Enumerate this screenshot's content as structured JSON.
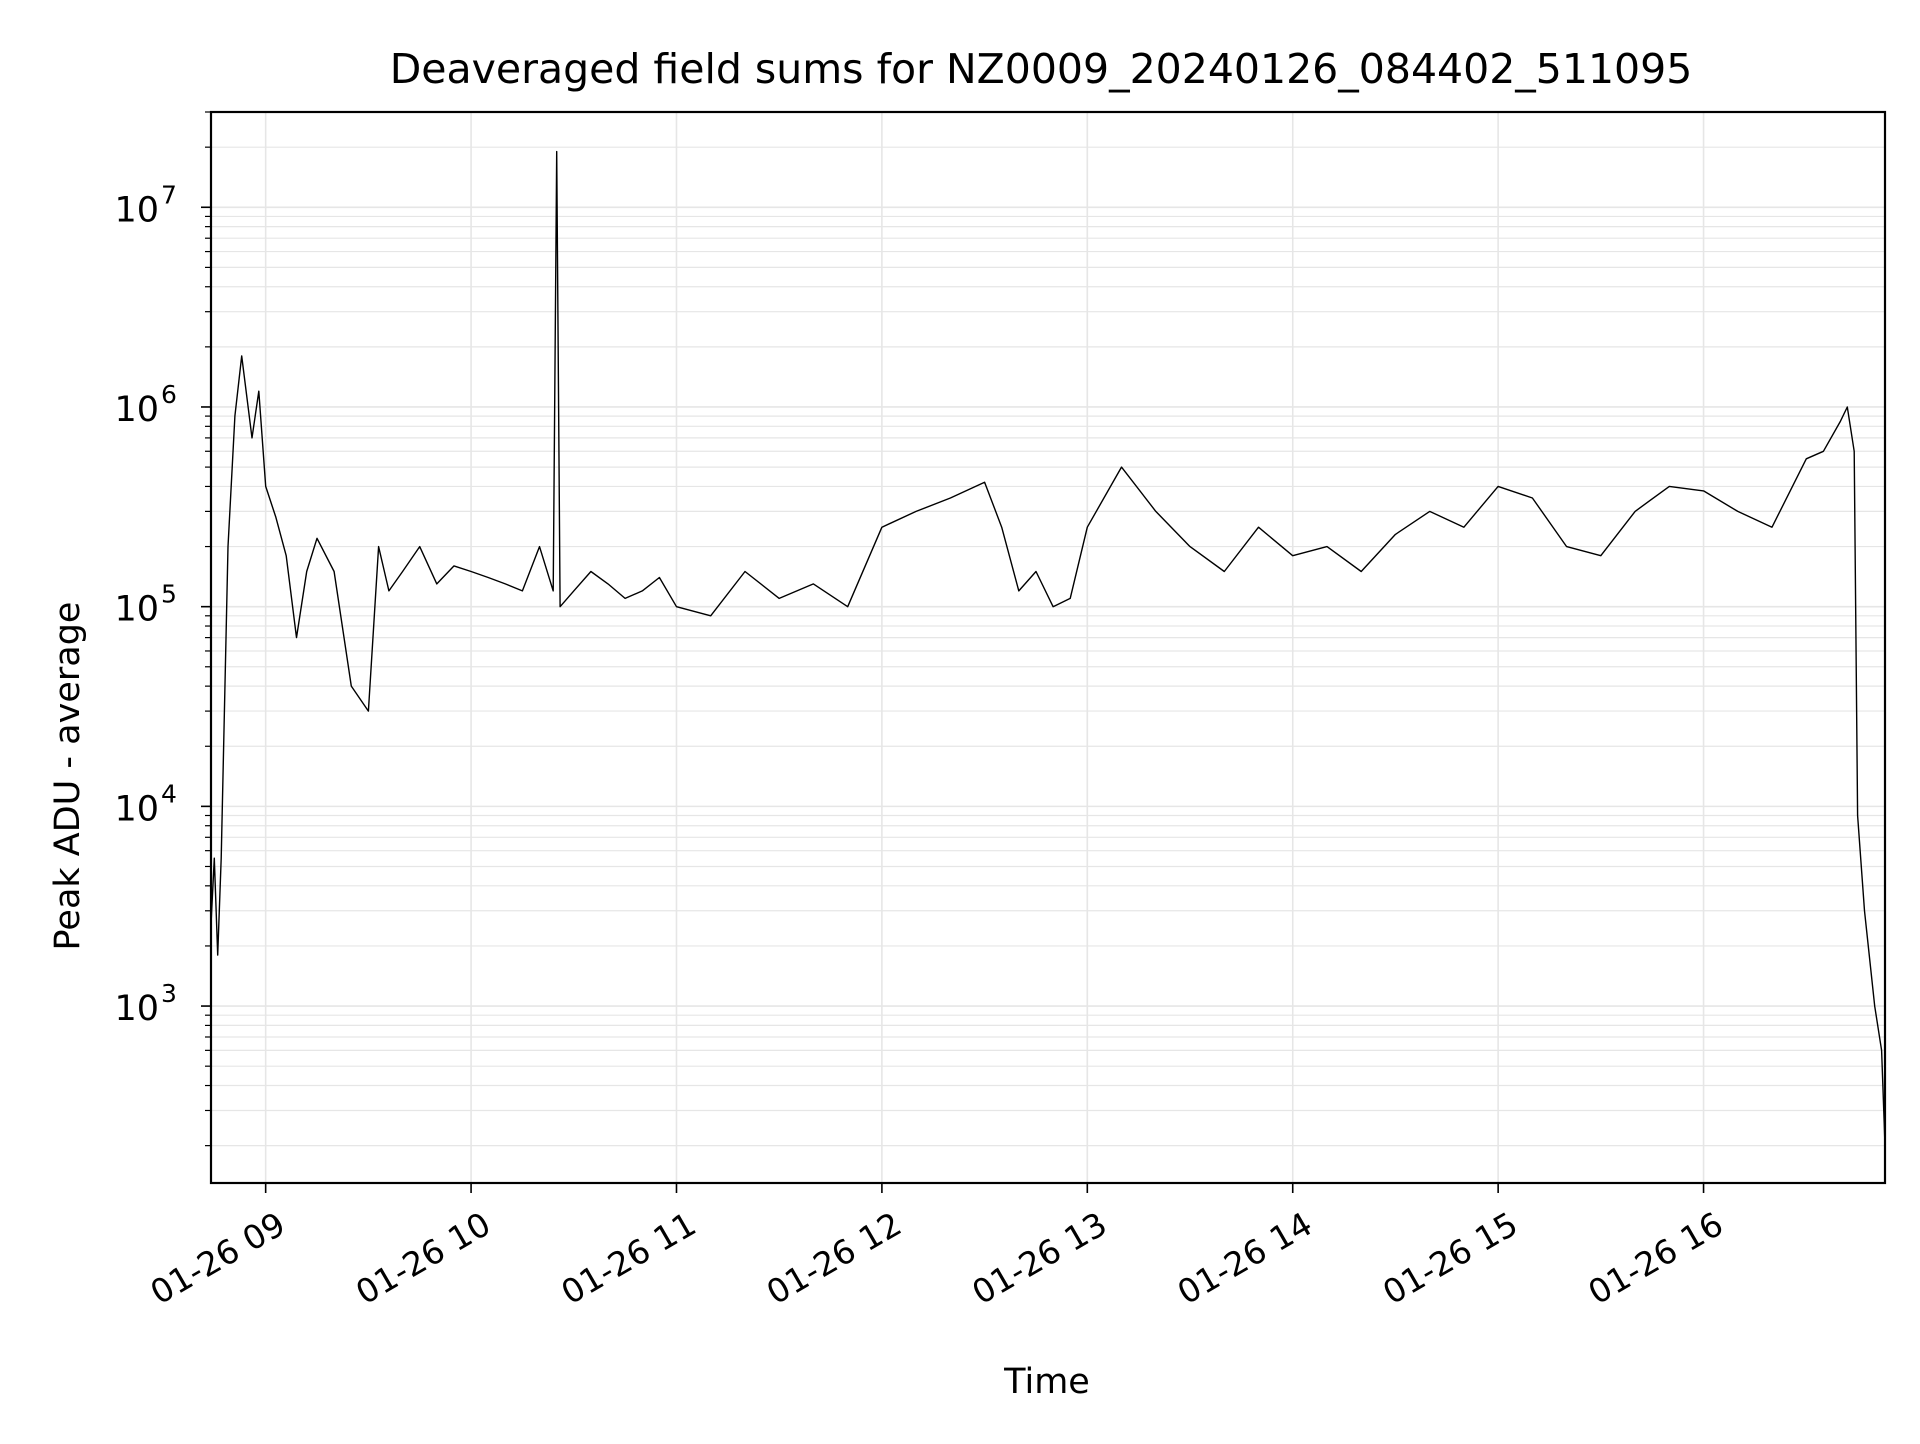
{
  "chart_data": {
    "type": "line",
    "title": "Deaveraged field sums for NZ0009_20240126_084402_511095",
    "xlabel": "Time",
    "ylabel": "Peak ADU - average",
    "yscale": "log",
    "xlim": [
      "2024-01-26 08:44:02",
      "2024-01-26 16:53:00"
    ],
    "ylim": [
      130,
      30000000
    ],
    "grid": true,
    "legend": "none",
    "x_ticks": [
      {
        "value": "2024-01-26 09:00",
        "label": "01-26 09"
      },
      {
        "value": "2024-01-26 10:00",
        "label": "01-26 10"
      },
      {
        "value": "2024-01-26 11:00",
        "label": "01-26 11"
      },
      {
        "value": "2024-01-26 12:00",
        "label": "01-26 12"
      },
      {
        "value": "2024-01-26 13:00",
        "label": "01-26 13"
      },
      {
        "value": "2024-01-26 14:00",
        "label": "01-26 14"
      },
      {
        "value": "2024-01-26 15:00",
        "label": "01-26 15"
      },
      {
        "value": "2024-01-26 16:00",
        "label": "01-26 16"
      }
    ],
    "y_ticks": [
      {
        "value": 1000,
        "base": "10",
        "exp": "3"
      },
      {
        "value": 10000,
        "base": "10",
        "exp": "4"
      },
      {
        "value": 100000,
        "base": "10",
        "exp": "5"
      },
      {
        "value": 1000000,
        "base": "10",
        "exp": "6"
      },
      {
        "value": 10000000,
        "base": "10",
        "exp": "7"
      }
    ],
    "line_color": "#000000",
    "grid_color": "#e6e6e6",
    "series": [
      {
        "x": [
          "2024-01-26 08:44",
          "2024-01-26 08:45",
          "2024-01-26 08:46",
          "2024-01-26 08:47",
          "2024-01-26 08:49",
          "2024-01-26 08:51",
          "2024-01-26 08:53",
          "2024-01-26 08:56",
          "2024-01-26 08:58",
          "2024-01-26 09:00",
          "2024-01-26 09:03",
          "2024-01-26 09:06",
          "2024-01-26 09:09",
          "2024-01-26 09:12",
          "2024-01-26 09:15",
          "2024-01-26 09:20",
          "2024-01-26 09:25",
          "2024-01-26 09:30",
          "2024-01-26 09:33",
          "2024-01-26 09:36",
          "2024-01-26 09:40",
          "2024-01-26 09:45",
          "2024-01-26 09:50",
          "2024-01-26 09:55",
          "2024-01-26 10:00",
          "2024-01-26 10:05",
          "2024-01-26 10:10",
          "2024-01-26 10:15",
          "2024-01-26 10:20",
          "2024-01-26 10:24",
          "2024-01-26 10:25",
          "2024-01-26 10:26",
          "2024-01-26 10:30",
          "2024-01-26 10:35",
          "2024-01-26 10:40",
          "2024-01-26 10:45",
          "2024-01-26 10:50",
          "2024-01-26 10:55",
          "2024-01-26 11:00",
          "2024-01-26 11:10",
          "2024-01-26 11:20",
          "2024-01-26 11:30",
          "2024-01-26 11:40",
          "2024-01-26 11:50",
          "2024-01-26 12:00",
          "2024-01-26 12:10",
          "2024-01-26 12:20",
          "2024-01-26 12:30",
          "2024-01-26 12:35",
          "2024-01-26 12:40",
          "2024-01-26 12:45",
          "2024-01-26 12:50",
          "2024-01-26 12:55",
          "2024-01-26 13:00",
          "2024-01-26 13:10",
          "2024-01-26 13:20",
          "2024-01-26 13:30",
          "2024-01-26 13:40",
          "2024-01-26 13:50",
          "2024-01-26 14:00",
          "2024-01-26 14:10",
          "2024-01-26 14:20",
          "2024-01-26 14:30",
          "2024-01-26 14:40",
          "2024-01-26 14:50",
          "2024-01-26 15:00",
          "2024-01-26 15:10",
          "2024-01-26 15:20",
          "2024-01-26 15:30",
          "2024-01-26 15:40",
          "2024-01-26 15:50",
          "2024-01-26 16:00",
          "2024-01-26 16:10",
          "2024-01-26 16:20",
          "2024-01-26 16:30",
          "2024-01-26 16:35",
          "2024-01-26 16:40",
          "2024-01-26 16:42",
          "2024-01-26 16:44",
          "2024-01-26 16:45",
          "2024-01-26 16:47",
          "2024-01-26 16:50",
          "2024-01-26 16:52",
          "2024-01-26 16:53"
        ],
        "y": [
          2500,
          5500,
          1800,
          5500,
          200000,
          900000,
          1800000,
          700000,
          1200000,
          400000,
          280000,
          180000,
          70000,
          150000,
          220000,
          150000,
          40000,
          30000,
          200000,
          120000,
          150000,
          200000,
          130000,
          160000,
          150000,
          140000,
          130000,
          120000,
          200000,
          120000,
          19000000,
          100000,
          120000,
          150000,
          130000,
          110000,
          120000,
          140000,
          100000,
          90000,
          150000,
          110000,
          130000,
          100000,
          250000,
          300000,
          350000,
          420000,
          250000,
          120000,
          150000,
          100000,
          110000,
          250000,
          500000,
          300000,
          200000,
          150000,
          250000,
          180000,
          200000,
          150000,
          230000,
          300000,
          250000,
          400000,
          350000,
          200000,
          180000,
          300000,
          400000,
          380000,
          300000,
          250000,
          550000,
          600000,
          850000,
          1000000,
          600000,
          9000,
          3000,
          1000,
          600,
          200
        ]
      }
    ]
  }
}
